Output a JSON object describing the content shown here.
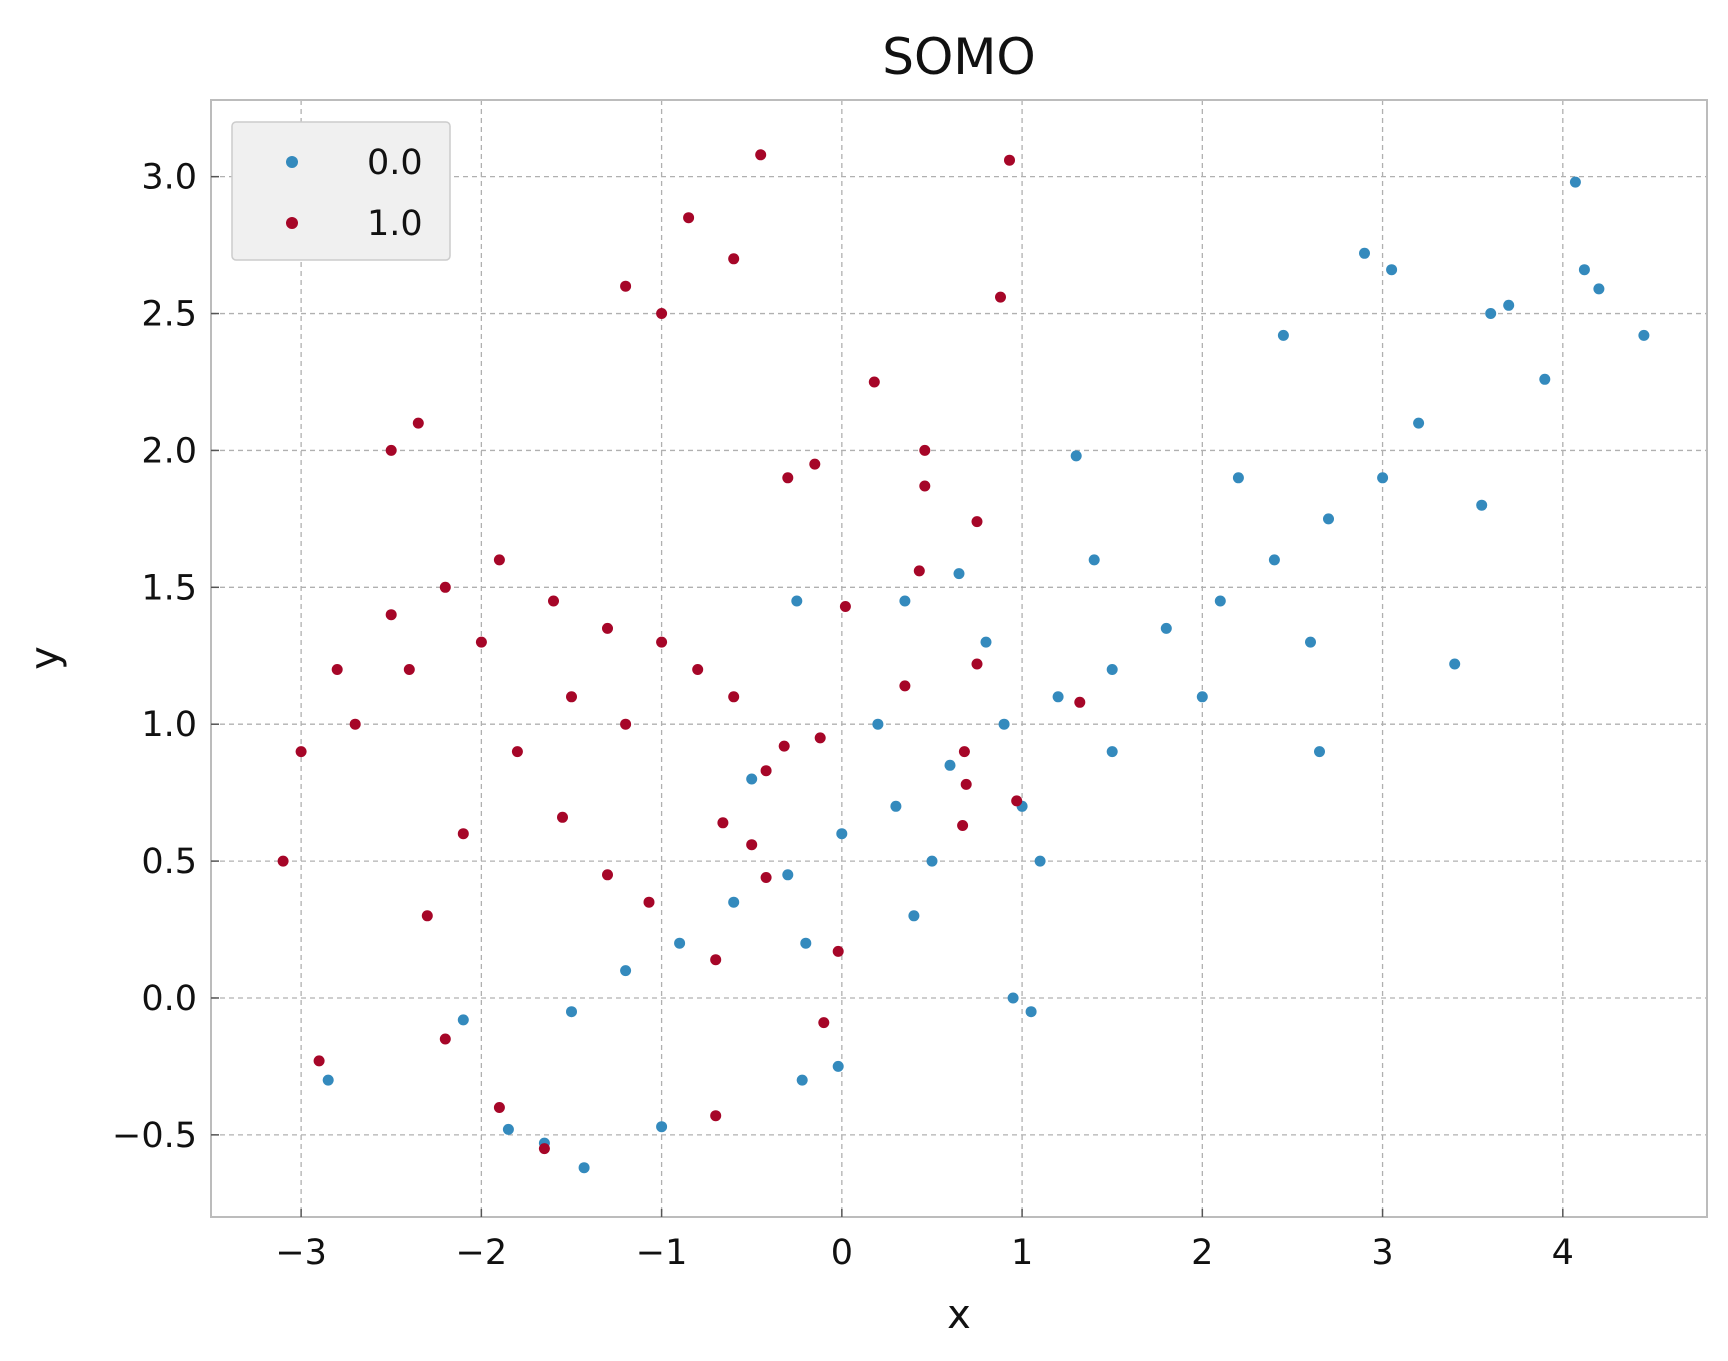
{
  "chart_data": {
    "type": "scatter",
    "title": "SOMO",
    "xlabel": "x",
    "ylabel": "y",
    "xlim": [
      -3.5,
      4.8
    ],
    "ylim": [
      -0.8,
      3.28
    ],
    "xticks": [
      -3,
      -2,
      -1,
      0,
      1,
      2,
      3,
      4
    ],
    "xtick_labels": [
      "−3",
      "−2",
      "−1",
      "0",
      "1",
      "2",
      "3",
      "4"
    ],
    "yticks": [
      -0.5,
      0.0,
      0.5,
      1.0,
      1.5,
      2.0,
      2.5,
      3.0
    ],
    "ytick_labels": [
      "−0.5",
      "0.0",
      "0.5",
      "1.0",
      "1.5",
      "2.0",
      "2.5",
      "3.0"
    ],
    "grid": true,
    "legend_position": "top-left",
    "series": [
      {
        "name": "0.0",
        "color": "#348abd",
        "points": [
          [
            0.0,
            0.6
          ],
          [
            0.3,
            0.7
          ],
          [
            0.6,
            0.85
          ],
          [
            0.9,
            1.0
          ],
          [
            1.2,
            1.1
          ],
          [
            1.5,
            1.2
          ],
          [
            1.8,
            1.35
          ],
          [
            2.1,
            1.45
          ],
          [
            2.4,
            1.6
          ],
          [
            2.7,
            1.75
          ],
          [
            -0.3,
            0.45
          ],
          [
            -0.6,
            0.35
          ],
          [
            -0.9,
            0.2
          ],
          [
            -1.2,
            0.1
          ],
          [
            -1.5,
            -0.05
          ],
          [
            0.5,
            0.5
          ],
          [
            1.0,
            0.7
          ],
          [
            1.5,
            0.9
          ],
          [
            2.0,
            1.1
          ],
          [
            0.2,
            1.0
          ],
          [
            0.8,
            1.3
          ],
          [
            1.4,
            1.6
          ],
          [
            2.2,
            1.9
          ],
          [
            -0.5,
            0.8
          ],
          [
            -0.2,
            0.2
          ],
          [
            0.4,
            0.3
          ],
          [
            1.1,
            0.5
          ],
          [
            2.6,
            1.3
          ],
          [
            3.0,
            1.9
          ],
          [
            3.2,
            2.1
          ],
          [
            3.6,
            2.5
          ],
          [
            4.07,
            2.98
          ],
          [
            4.12,
            2.66
          ],
          [
            4.2,
            2.59
          ],
          [
            4.45,
            2.42
          ],
          [
            2.9,
            2.72
          ],
          [
            3.05,
            2.66
          ],
          [
            3.7,
            2.53
          ],
          [
            3.4,
            1.22
          ],
          [
            2.65,
            0.9
          ],
          [
            1.05,
            -0.05
          ],
          [
            0.95,
            0.0
          ],
          [
            -2.85,
            -0.3
          ],
          [
            -1.43,
            -0.62
          ],
          [
            -1.65,
            -0.53
          ],
          [
            -1.85,
            -0.48
          ],
          [
            -1.0,
            -0.47
          ],
          [
            -0.22,
            -0.3
          ],
          [
            -0.02,
            -0.25
          ],
          [
            -2.1,
            -0.08
          ],
          [
            3.9,
            2.26
          ],
          [
            3.55,
            1.8
          ],
          [
            1.3,
            1.98
          ],
          [
            0.65,
            1.55
          ],
          [
            0.35,
            1.45
          ],
          [
            -0.25,
            1.45
          ],
          [
            2.45,
            2.42
          ]
        ]
      },
      {
        "name": "1.0",
        "color": "#a60628",
        "points": [
          [
            -3.1,
            0.5
          ],
          [
            -3.0,
            0.9
          ],
          [
            -2.8,
            1.2
          ],
          [
            -2.5,
            1.4
          ],
          [
            -2.2,
            1.5
          ],
          [
            -1.9,
            1.6
          ],
          [
            -1.6,
            1.45
          ],
          [
            -1.3,
            1.35
          ],
          [
            -1.0,
            1.3
          ],
          [
            -0.8,
            1.2
          ],
          [
            -0.6,
            1.1
          ],
          [
            -1.2,
            1.0
          ],
          [
            -1.5,
            1.1
          ],
          [
            -2.0,
            1.3
          ],
          [
            -2.4,
            1.2
          ],
          [
            -2.7,
            1.0
          ],
          [
            -2.3,
            0.3
          ],
          [
            -2.1,
            0.6
          ],
          [
            -1.8,
            0.9
          ],
          [
            -2.5,
            2.0
          ],
          [
            -2.35,
            2.1
          ],
          [
            -1.0,
            2.5
          ],
          [
            -0.6,
            2.7
          ],
          [
            -0.45,
            3.08
          ],
          [
            -1.2,
            2.6
          ],
          [
            -0.85,
            2.85
          ],
          [
            -0.3,
            1.9
          ],
          [
            -0.15,
            1.95
          ],
          [
            -2.9,
            -0.23
          ],
          [
            -2.2,
            -0.15
          ],
          [
            -1.65,
            -0.55
          ],
          [
            -1.9,
            -0.4
          ],
          [
            -0.7,
            -0.43
          ],
          [
            -0.1,
            -0.09
          ],
          [
            0.93,
            3.06
          ],
          [
            0.88,
            2.56
          ],
          [
            0.18,
            2.25
          ],
          [
            0.46,
            2.0
          ],
          [
            0.46,
            1.87
          ],
          [
            0.75,
            1.74
          ],
          [
            0.43,
            1.56
          ],
          [
            0.75,
            1.22
          ],
          [
            0.35,
            1.14
          ],
          [
            1.32,
            1.08
          ],
          [
            0.68,
            0.9
          ],
          [
            0.69,
            0.78
          ],
          [
            0.97,
            0.72
          ],
          [
            0.67,
            0.63
          ],
          [
            -0.32,
            0.92
          ],
          [
            -0.12,
            0.95
          ],
          [
            -0.42,
            0.83
          ],
          [
            -0.5,
            0.56
          ],
          [
            -0.42,
            0.44
          ],
          [
            -0.66,
            0.64
          ],
          [
            0.02,
            1.43
          ],
          [
            -0.7,
            0.14
          ],
          [
            -0.02,
            0.17
          ],
          [
            -1.3,
            0.45
          ],
          [
            -1.07,
            0.35
          ],
          [
            -1.55,
            0.66
          ]
        ]
      }
    ]
  }
}
